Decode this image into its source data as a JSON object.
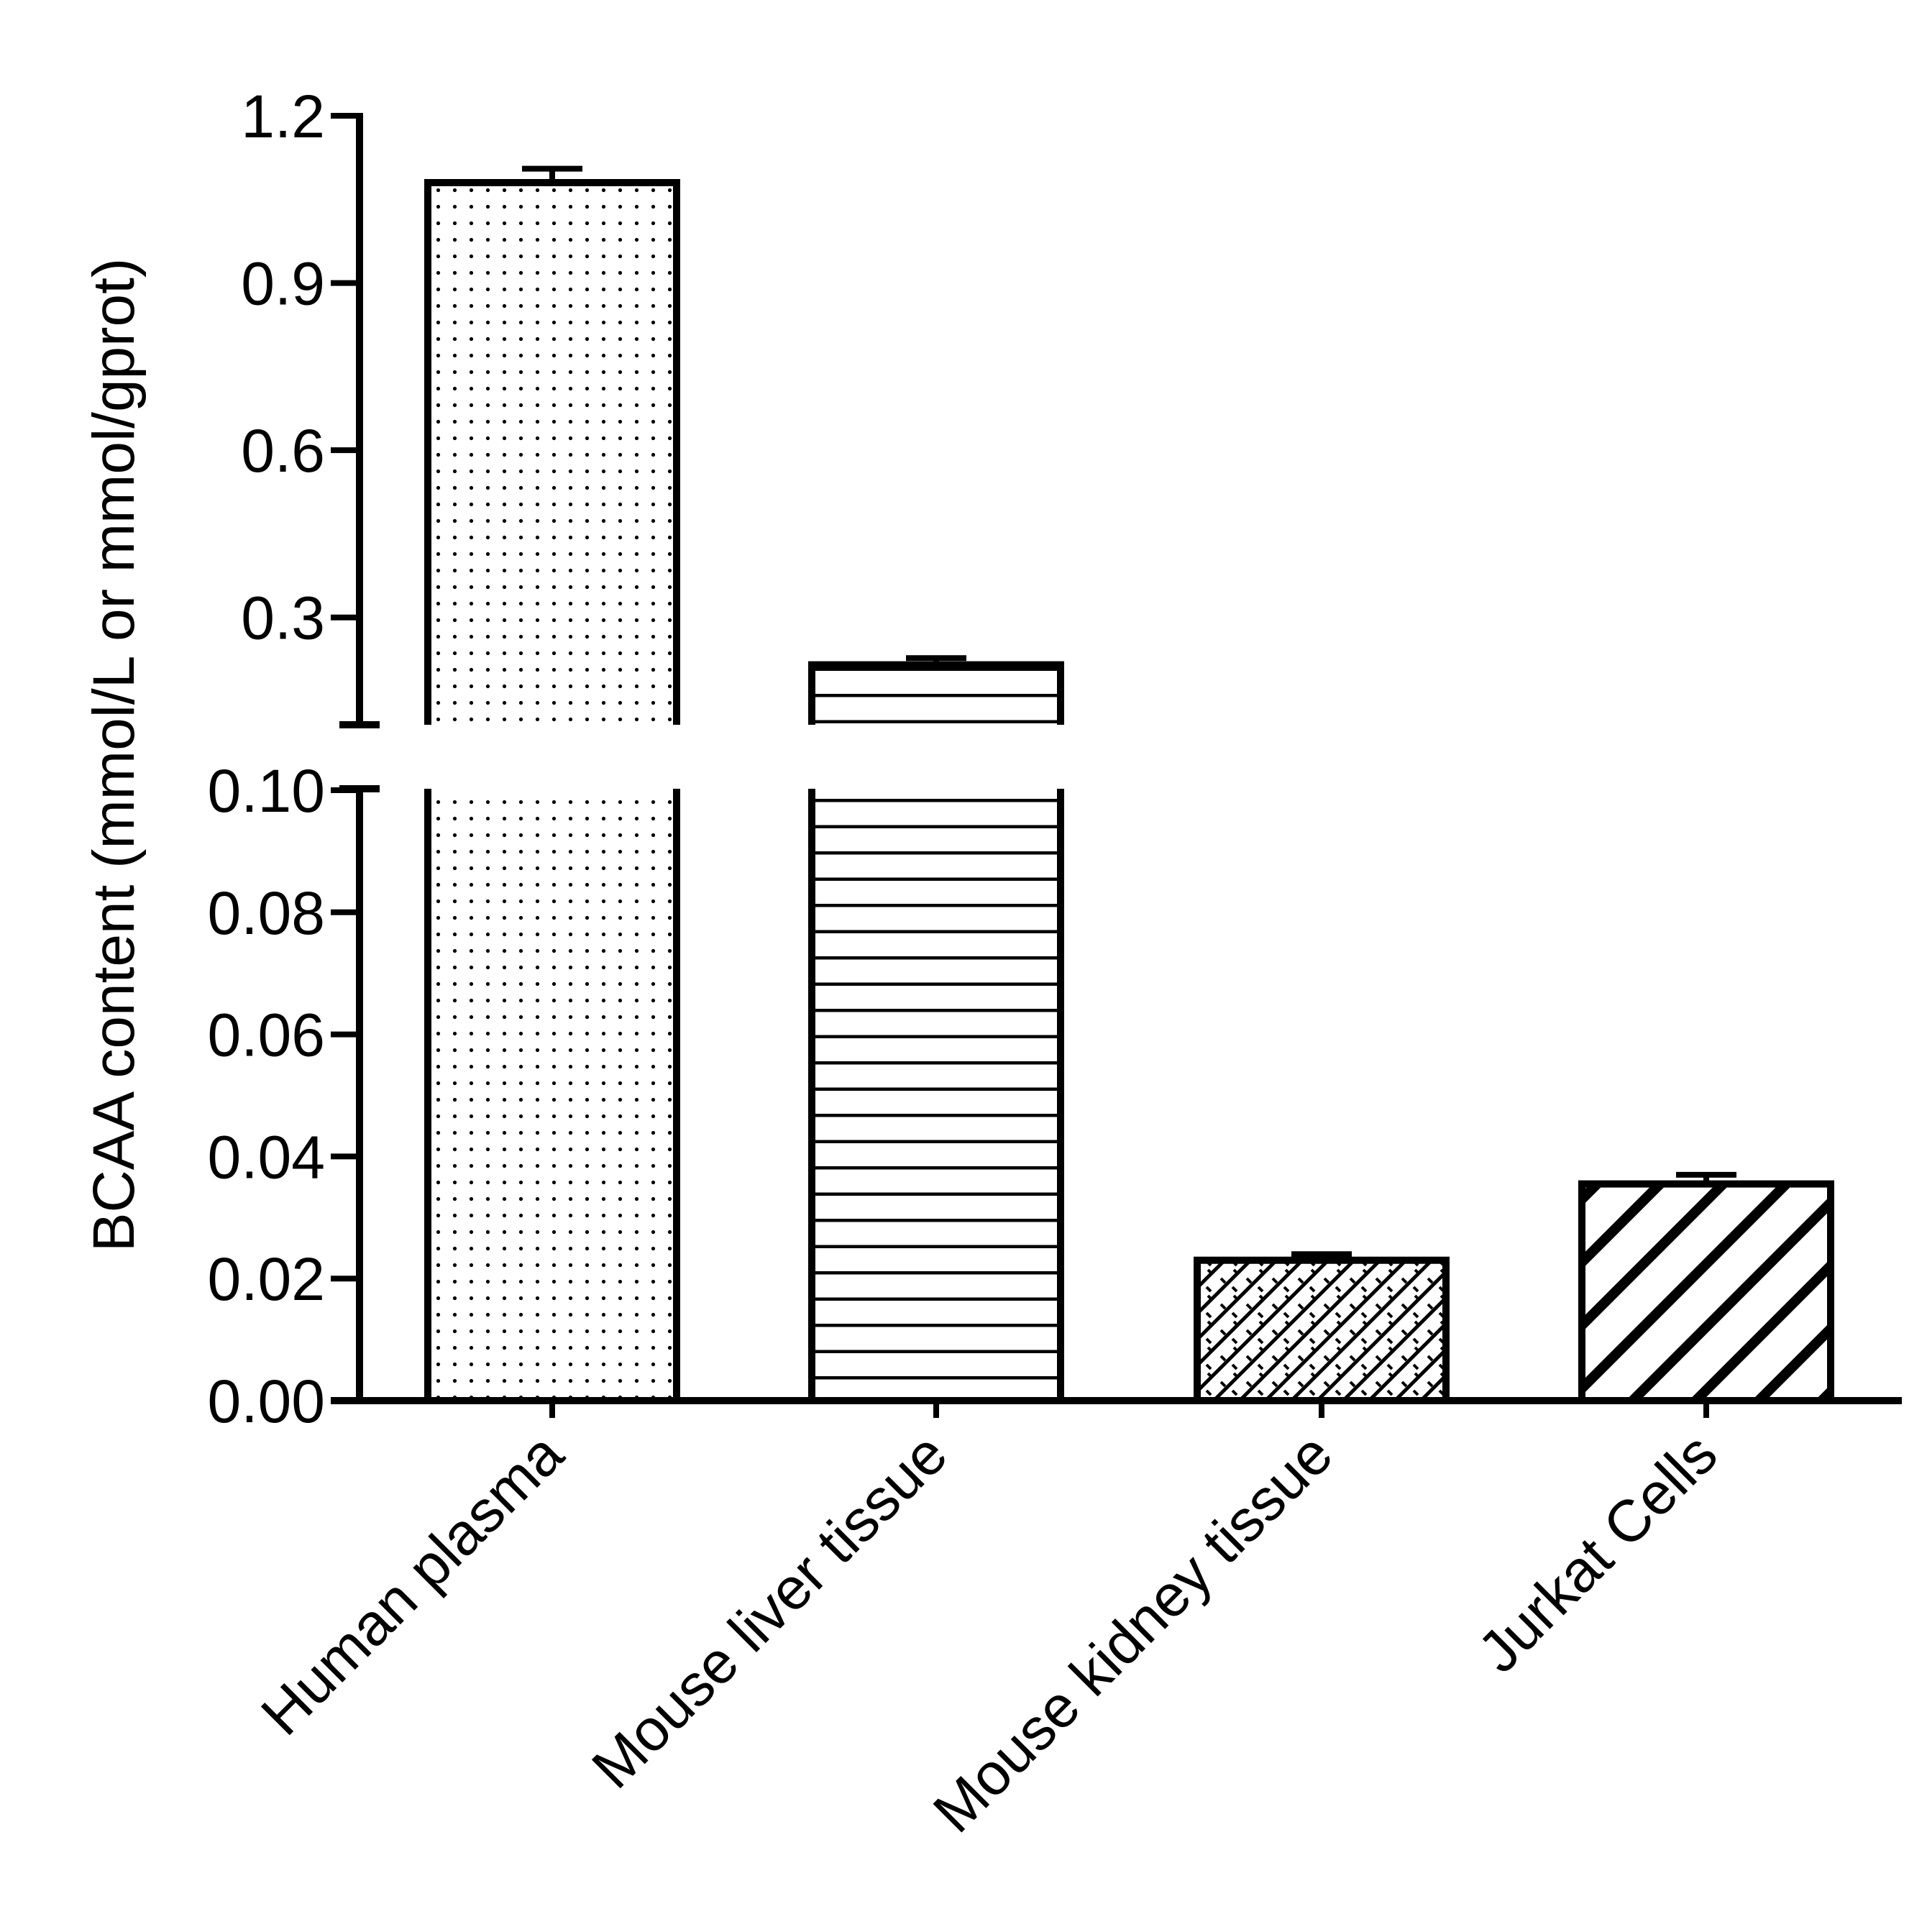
{
  "chart_data": {
    "type": "bar",
    "ylabel": "BCAA content (mmol/L or mmol/gprot)",
    "xlabel": "",
    "title": "",
    "categories": [
      "Human plasma",
      "Mouse liver tissue",
      "Mouse kidney tissue",
      "Jurkat Cells"
    ],
    "values": [
      1.08,
      0.215,
      0.023,
      0.0355
    ],
    "errors": [
      0.025,
      0.012,
      0.001,
      0.0015
    ],
    "fill_patterns": [
      "dots",
      "horizontal-lines",
      "crosshatch",
      "diagonal-stripes"
    ],
    "axis_break": {
      "lower_segment": {
        "ylim": [
          0,
          0.1
        ],
        "ticks": [
          "0.00",
          "0.02",
          "0.04",
          "0.06",
          "0.08",
          "0.10"
        ]
      },
      "upper_segment": {
        "ylim": [
          0.11,
          1.2
        ],
        "ticks": [
          "0.3",
          "0.6",
          "0.9",
          "1.2"
        ]
      }
    },
    "grid": false,
    "legend": "none",
    "colors": {
      "stroke": "#000000",
      "fill": "#ffffff"
    }
  }
}
